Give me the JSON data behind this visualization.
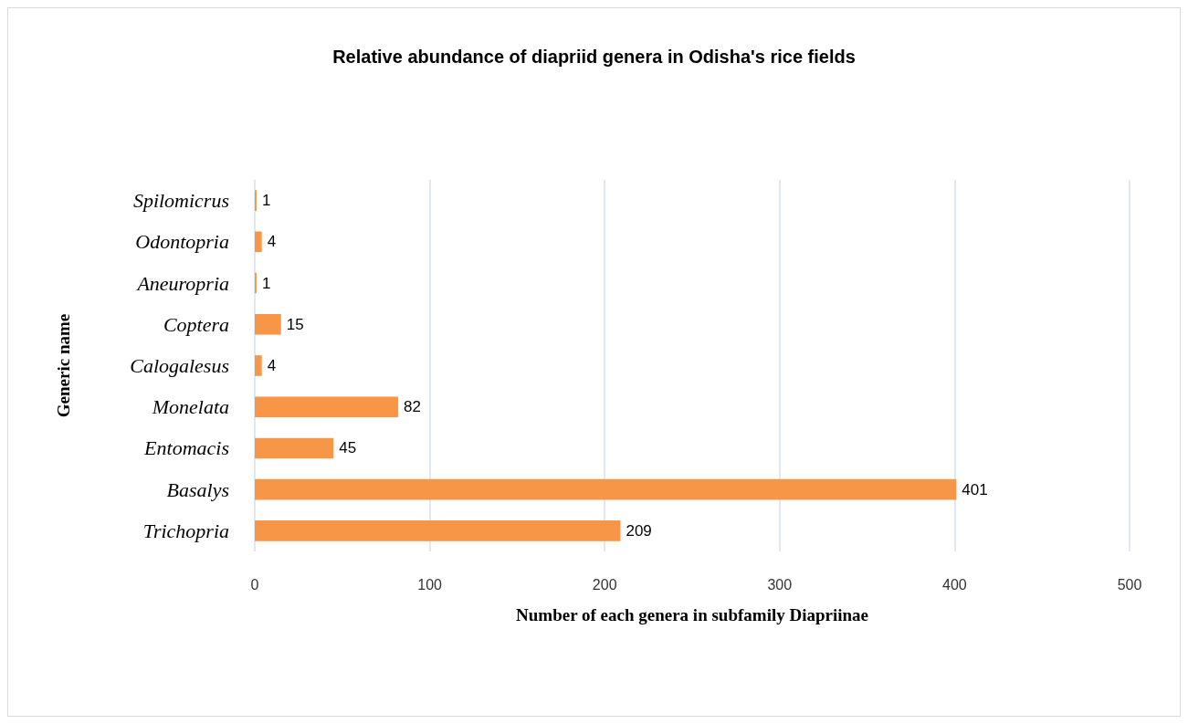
{
  "chart_data": {
    "type": "bar",
    "orientation": "horizontal",
    "title": "Relative abundance of diapriid genera in Odisha's rice fields",
    "xlabel": "Number of each genera in subfamily Diapriinae",
    "ylabel": "Generic name",
    "categories": [
      "Spilomicrus",
      "Odontopria",
      "Aneuropria",
      "Coptera",
      "Calogalesus",
      "Monelata",
      "Entomacis",
      "Basalys",
      "Trichopria"
    ],
    "values": [
      1,
      4,
      1,
      15,
      4,
      82,
      45,
      401,
      209
    ],
    "color": "#f79646",
    "xlim": [
      0,
      500
    ],
    "xticks": [
      0,
      100,
      200,
      300,
      400,
      500
    ],
    "grid": "x",
    "data_labels": true
  }
}
